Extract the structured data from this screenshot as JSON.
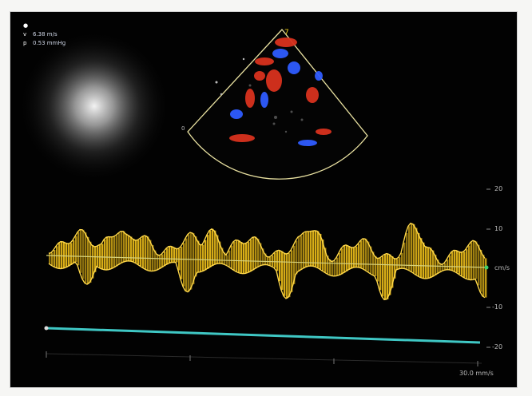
{
  "legend": {
    "items": [
      {
        "symbol": "●",
        "text": ""
      },
      {
        "symbol": "v",
        "text": "6.38 m/s"
      },
      {
        "symbol": "p",
        "text": "0.53 mmHg"
      }
    ]
  },
  "sector": {
    "marker_left": "0",
    "marker_right": "7"
  },
  "scale": {
    "ticks": [
      "20",
      "10",
      "cm/s",
      "-10",
      "-20"
    ]
  },
  "time_label": "30.0 mm/s",
  "colors": {
    "waveform": "#f2c21a",
    "baseline": "#d8d27a",
    "reference_line": "#3fc7c4",
    "doppler_red": "#d8321e",
    "doppler_blue": "#2f5cff",
    "sector_outline": "#e8e0a0"
  }
}
